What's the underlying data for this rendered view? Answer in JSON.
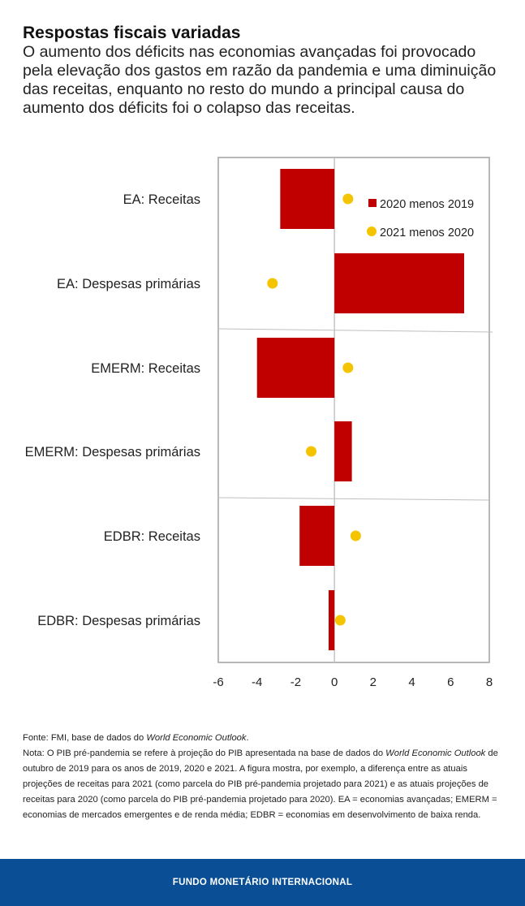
{
  "header": {
    "title": "Respostas fiscais variadas",
    "subtitle": "O aumento dos déficits nas economias avançadas foi provocado pela elevação dos gastos em razão da pandemia e uma diminuição das receitas, enquanto no resto do mundo a principal causa do aumento dos déficits foi o colapso das receitas."
  },
  "chart_data": {
    "type": "bar",
    "orientation": "horizontal",
    "categories": [
      "EA: Receitas",
      "EA: Despesas primárias",
      "EMERM: Receitas",
      "EMERM: Despesas primárias",
      "EDBR: Receitas",
      "EDBR: Despesas primárias"
    ],
    "series": [
      {
        "name": "2020 menos 2019",
        "mark": "bar",
        "color": "#c00000",
        "values": [
          -2.8,
          6.7,
          -4.0,
          0.9,
          -1.8,
          -0.3
        ]
      },
      {
        "name": "2021 menos 2020",
        "mark": "dot",
        "color": "#f5c400",
        "values": [
          0.7,
          -3.2,
          0.7,
          -1.2,
          1.1,
          0.3
        ]
      }
    ],
    "xlim": [
      -6,
      8
    ],
    "xticks": [
      "-6",
      "-4",
      "-2",
      "0",
      "2",
      "4",
      "6",
      "8"
    ],
    "xlabel": "",
    "ylabel": "",
    "legend_position": "top-right"
  },
  "source": {
    "fonte_prefix": "Fonte: FMI, base de dados do ",
    "fonte_italic": "World Economic Outlook",
    "fonte_suffix": ".",
    "nota_prefix": "Nota: O PIB pré-pandemia se refere à projeção do PIB apresentada na base de dados do ",
    "nota_italic": "World Economic Outlook",
    "nota_suffix": " de outubro de 2019 para os anos de 2019, 2020 e 2021. A figura mostra, por exemplo, a diferença entre as atuais projeções de receitas para 2021 (como parcela do PIB pré-pandemia projetado para 2021) e as atuais projeções de receitas para 2020 (como parcela do PIB pré-pandemia projetado para 2020). EA = economias avançadas; EMERM = economias de mercados emergentes e de renda média; EDBR = economias em desenvolvimento de baixa renda."
  },
  "footer": {
    "organization": "FUNDO MONETÁRIO INTERNACIONAL"
  }
}
